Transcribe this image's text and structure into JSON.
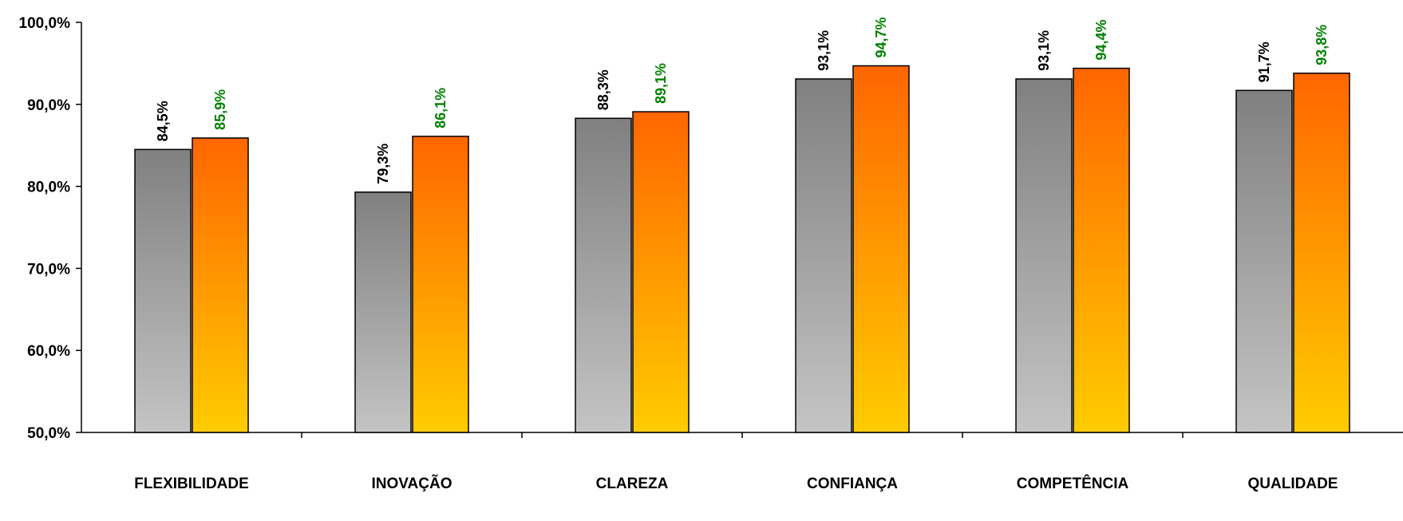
{
  "chart_data": {
    "type": "bar",
    "categories": [
      "FLEXIBILIDADE",
      "INOVAÇÃO",
      "CLAREZA",
      "CONFIANÇA",
      "COMPETÊNCIA",
      "QUALIDADE"
    ],
    "series": [
      {
        "values": [
          84.5,
          79.3,
          88.3,
          93.1,
          93.1,
          91.7
        ],
        "labels": [
          "84,5%",
          "79,3%",
          "88,3%",
          "93,1%",
          "93,1%",
          "91,7%"
        ],
        "gradient_top": "#808080",
        "gradient_bottom": "#c4c4c4",
        "label_color": "#000000"
      },
      {
        "values": [
          85.9,
          86.1,
          89.1,
          94.7,
          94.4,
          93.8
        ],
        "labels": [
          "85,9%",
          "86,1%",
          "89,1%",
          "94,7%",
          "94,4%",
          "93,8%"
        ],
        "gradient_top": "#ff6600",
        "gradient_bottom": "#ffcc00",
        "label_color": "#008000"
      }
    ],
    "yticks": [
      "50,0%",
      "60,0%",
      "70,0%",
      "80,0%",
      "90,0%",
      "100,0%"
    ],
    "ytick_values": [
      50,
      60,
      70,
      80,
      90,
      100
    ],
    "ylim": [
      50,
      100
    ],
    "grid": false,
    "legend": "none",
    "title": "",
    "xlabel": "",
    "ylabel": ""
  }
}
